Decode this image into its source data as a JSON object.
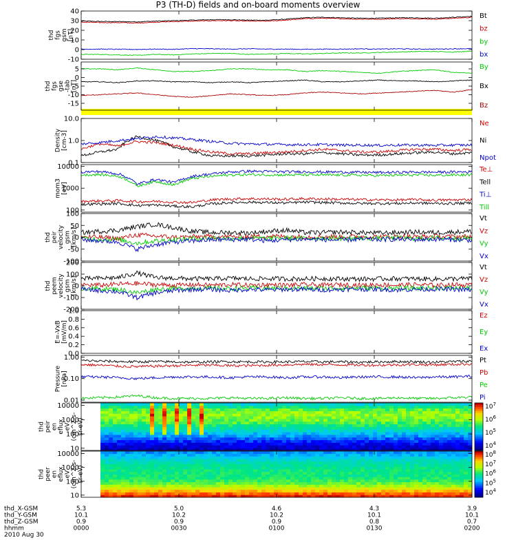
{
  "title": "P3 (TH-D) fields and on-board moments overview",
  "chart_data": [
    {
      "type": "line",
      "ylabel": [
        "thd",
        "fgs",
        "gsm",
        "[nT]"
      ],
      "ylim": [
        -10,
        40
      ],
      "yticks": [
        {
          "v": 40,
          "t": "40"
        },
        {
          "v": 30,
          "t": "30"
        },
        {
          "v": 20,
          "t": "20"
        },
        {
          "v": 10,
          "t": "10"
        },
        {
          "v": 0,
          "t": "0"
        },
        {
          "v": -10,
          "t": "-10"
        }
      ],
      "series": [
        {
          "name": "Bt",
          "color": "#000000",
          "values": [
            29.5,
            29.2,
            29.0,
            28.8,
            29.5,
            30.0,
            30.5,
            31.0,
            31.0,
            30.5,
            30.5,
            31.5,
            33.0,
            33.5,
            33.0,
            32.5,
            32.5,
            33.0,
            33.0,
            32.5,
            33.5,
            34.5
          ]
        },
        {
          "name": "bz",
          "color": "#cc0000",
          "values": [
            28.5,
            28.0,
            28.0,
            27.5,
            28.5,
            29.0,
            29.5,
            30.0,
            30.0,
            29.5,
            29.5,
            30.5,
            32.0,
            32.5,
            32.0,
            31.5,
            31.5,
            32.0,
            32.0,
            31.5,
            32.5,
            33.5
          ]
        },
        {
          "name": "by",
          "color": "#00cc00",
          "values": [
            -5.0,
            -5.0,
            -5.5,
            -6.0,
            -5.0,
            -5.5,
            -4.5,
            -4.0,
            -4.0,
            -5.0,
            -4.5,
            -4.0,
            -4.5,
            -4.0,
            -3.5,
            -3.5,
            -3.0,
            -2.5,
            -2.0,
            -2.0,
            -2.5,
            -1.5
          ]
        },
        {
          "name": "bx",
          "color": "#0000cc",
          "values": [
            0.5,
            0.5,
            0.3,
            0.2,
            0.5,
            0.3,
            1.0,
            0.8,
            0.5,
            0.8,
            0.5,
            0.5,
            0.3,
            0.5,
            0.5,
            0.8,
            0.5,
            0.8,
            0.5,
            0.5,
            0.8,
            1.0
          ]
        }
      ]
    },
    {
      "type": "line",
      "ylabel": [
        "thd",
        "fgs",
        "gse",
        "-tab",
        "[nT]"
      ],
      "ylim": [
        -19,
        9
      ],
      "yticks": [
        {
          "v": 5,
          "t": "5"
        },
        {
          "v": 0,
          "t": "0"
        },
        {
          "v": -5,
          "t": "-5"
        },
        {
          "v": -10,
          "t": "-10"
        },
        {
          "v": -15,
          "t": "-15"
        }
      ],
      "series": [
        {
          "name": "By",
          "color": "#00cc00",
          "values": [
            5.0,
            5.0,
            4.5,
            5.5,
            4.5,
            3.5,
            3.5,
            4.0,
            5.0,
            5.0,
            4.5,
            4.5,
            3.5,
            4.0,
            3.5,
            3.0,
            2.5,
            3.5,
            4.0,
            4.5,
            3.0,
            2.5
          ]
        },
        {
          "name": "Bx",
          "color": "#000000",
          "values": [
            -2.5,
            -2.5,
            -3.0,
            -2.0,
            -2.0,
            -2.5,
            -2.5,
            -3.0,
            -2.5,
            -3.0,
            -2.5,
            -2.0,
            -1.5,
            -2.5,
            -2.5,
            -2.0,
            -1.5,
            -2.0,
            -2.0,
            -2.5,
            -2.0,
            -1.5
          ]
        },
        {
          "name": "Bz",
          "color": "#aa0000",
          "values": [
            -10.5,
            -10.0,
            -9.5,
            -9.0,
            -10.0,
            -11.0,
            -11.5,
            -10.5,
            -9.5,
            -10.0,
            -10.5,
            -10.0,
            -9.0,
            -8.5,
            -9.0,
            -9.5,
            -9.0,
            -8.5,
            -8.0,
            -7.5,
            -8.5,
            -7.0
          ]
        }
      ]
    },
    {
      "type": "line",
      "ylabel": [
        "Density",
        "[cm-3]"
      ],
      "yscale": "log",
      "ylim": [
        0.1,
        10
      ],
      "yticks": [
        {
          "v": 10,
          "t": "10.0"
        },
        {
          "v": 1,
          "t": "1.0"
        },
        {
          "v": 0.1,
          "t": "0.1"
        }
      ],
      "series": [
        {
          "name": "Ne",
          "color": "#cc0000",
          "values": [
            0.4,
            0.7,
            0.55,
            0.9,
            0.8,
            0.6,
            0.4,
            0.3,
            0.25,
            0.25,
            0.28,
            0.3,
            0.35,
            0.4,
            0.35,
            0.3,
            0.3,
            0.35,
            0.4,
            0.4,
            0.35,
            0.4
          ]
        },
        {
          "name": "Ni",
          "color": "#000000",
          "values": [
            0.2,
            0.3,
            0.4,
            1.5,
            1.0,
            0.5,
            0.3,
            0.2,
            0.2,
            0.2,
            0.22,
            0.25,
            0.25,
            0.28,
            0.25,
            0.22,
            0.22,
            0.25,
            0.28,
            0.3,
            0.25,
            0.28
          ]
        },
        {
          "name": "Npot",
          "color": "#0000cc",
          "values": [
            0.7,
            0.8,
            1.0,
            1.2,
            1.5,
            1.3,
            1.1,
            0.9,
            0.75,
            0.7,
            0.68,
            0.65,
            0.65,
            0.65,
            0.62,
            0.62,
            0.6,
            0.62,
            0.62,
            0.6,
            0.62,
            0.62
          ]
        }
      ]
    },
    {
      "type": "line",
      "ylabel": [
        "mom3",
        "[eV]"
      ],
      "yscale": "log",
      "ylim": [
        80,
        12000
      ],
      "yticks": [
        {
          "v": 10000,
          "t": "10000"
        },
        {
          "v": 1000,
          "t": "1000"
        },
        {
          "v": 100,
          "t": "100"
        }
      ],
      "series": [
        {
          "name": "Te⊥",
          "color": "#cc0000",
          "values": [
            250,
            260,
            270,
            240,
            250,
            230,
            220,
            290,
            320,
            330,
            320,
            310,
            330,
            320,
            310,
            300,
            290,
            290,
            300,
            280,
            290,
            300
          ]
        },
        {
          "name": "Tell",
          "color": "#000000",
          "values": [
            180,
            190,
            200,
            160,
            170,
            150,
            140,
            190,
            220,
            230,
            220,
            210,
            230,
            220,
            210,
            200,
            200,
            200,
            210,
            200,
            200,
            210
          ]
        },
        {
          "name": "Ti⊥",
          "color": "#0000cc",
          "values": [
            5500,
            5800,
            4500,
            1500,
            2500,
            1800,
            3500,
            4500,
            5500,
            6000,
            5800,
            5600,
            5700,
            5500,
            5500,
            5300,
            5200,
            5300,
            5500,
            5400,
            5500,
            5600
          ]
        },
        {
          "name": "Till",
          "color": "#00cc00",
          "values": [
            4000,
            4200,
            3500,
            1200,
            2000,
            1400,
            2800,
            3500,
            4000,
            4200,
            4100,
            4000,
            4100,
            4000,
            4000,
            3900,
            3800,
            3900,
            4000,
            3900,
            4000,
            4100
          ]
        }
      ]
    },
    {
      "type": "line",
      "ylabel": [
        "thd",
        "peir",
        "velocity",
        "gsm",
        "[km/s]"
      ],
      "ylim": [
        -100,
        100
      ],
      "yticks": [
        {
          "v": 100,
          "t": "100"
        },
        {
          "v": 50,
          "t": "50"
        },
        {
          "v": 0,
          "t": "0"
        },
        {
          "v": -50,
          "t": "-50"
        },
        {
          "v": -100,
          "t": "-100"
        }
      ],
      "series": [
        {
          "name": "Vt",
          "color": "#000000",
          "values": [
            20,
            25,
            30,
            45,
            55,
            40,
            25,
            20,
            20,
            18,
            25,
            30,
            20,
            20,
            22,
            20,
            18,
            20,
            22,
            20,
            22,
            25
          ]
        },
        {
          "name": "Vz",
          "color": "#cc0000",
          "values": [
            2,
            0,
            -5,
            10,
            5,
            0,
            2,
            3,
            2,
            3,
            5,
            3,
            2,
            3,
            2,
            3,
            2,
            3,
            2,
            3,
            2,
            3
          ]
        },
        {
          "name": "Vy",
          "color": "#00cc00",
          "values": [
            -5,
            -8,
            -10,
            -25,
            -15,
            -10,
            -5,
            -3,
            -5,
            -3,
            -5,
            -3,
            -5,
            -3,
            -5,
            -3,
            -5,
            -3,
            -5,
            -3,
            -5,
            -3
          ]
        },
        {
          "name": "Vx",
          "color": "#0000cc",
          "values": [
            -10,
            -15,
            -20,
            -50,
            -30,
            -20,
            -15,
            -10,
            -10,
            -8,
            -15,
            -10,
            -8,
            -10,
            -12,
            -8,
            -10,
            -8,
            -10,
            -8,
            -10,
            -12
          ]
        }
      ]
    },
    {
      "type": "line",
      "ylabel": [
        "thd",
        "peem",
        "velocity",
        "gsm",
        "[km/s]"
      ],
      "ylim": [
        -200,
        200
      ],
      "yticks": [
        {
          "v": 200,
          "t": "200"
        },
        {
          "v": 100,
          "t": "100"
        },
        {
          "v": 0,
          "t": "0"
        },
        {
          "v": -100,
          "t": "-100"
        },
        {
          "v": -200,
          "t": "-200"
        }
      ],
      "series": [
        {
          "name": "Vt",
          "color": "#000000",
          "values": [
            60,
            65,
            70,
            110,
            70,
            65,
            60,
            60,
            65,
            60,
            62,
            60,
            60,
            62,
            60,
            58,
            60,
            62,
            60,
            58,
            60,
            62
          ]
        },
        {
          "name": "Vz",
          "color": "#cc0000",
          "values": [
            10,
            5,
            15,
            20,
            10,
            5,
            10,
            5,
            10,
            5,
            10,
            5,
            10,
            5,
            10,
            5,
            10,
            5,
            10,
            5,
            10,
            5
          ]
        },
        {
          "name": "Vy",
          "color": "#00cc00",
          "values": [
            -20,
            -25,
            -30,
            -60,
            -30,
            -25,
            -20,
            -20,
            -25,
            -20,
            -22,
            -20,
            -20,
            -22,
            -20,
            -18,
            -20,
            -22,
            -20,
            -18,
            -20,
            -22
          ]
        },
        {
          "name": "Vx",
          "color": "#0000cc",
          "values": [
            -30,
            -40,
            -50,
            -100,
            -60,
            -40,
            -30,
            -30,
            -40,
            -30,
            -35,
            -30,
            -30,
            -35,
            -30,
            -28,
            -30,
            -35,
            -30,
            -28,
            -30,
            -35
          ]
        }
      ]
    },
    {
      "type": "line",
      "ylabel": [
        "E=-VxB",
        "[mV/m]"
      ],
      "ylim": [
        0,
        1
      ],
      "yticks": [
        {
          "v": 1.0,
          "t": "1.0"
        },
        {
          "v": 0.8,
          "t": "0.8"
        },
        {
          "v": 0.6,
          "t": "0.6"
        },
        {
          "v": 0.4,
          "t": "0.4"
        },
        {
          "v": 0.2,
          "t": "0.2"
        },
        {
          "v": 0.0,
          "t": "0.0"
        }
      ],
      "series": [
        {
          "name": "Ez",
          "color": "#cc0000",
          "values": []
        },
        {
          "name": "Ey",
          "color": "#00cc00",
          "values": []
        },
        {
          "name": "Ex",
          "color": "#0000cc",
          "values": []
        }
      ]
    },
    {
      "type": "line",
      "ylabel": [
        "Pressure",
        "[nPa]"
      ],
      "yscale": "log",
      "ylim": [
        0.008,
        1.2
      ],
      "yticks": [
        {
          "v": 1.0,
          "t": "1.00"
        },
        {
          "v": 0.1,
          "t": "0.10"
        },
        {
          "v": 0.01,
          "t": "0.01"
        }
      ],
      "series": [
        {
          "name": "Pt",
          "color": "#000000",
          "values": [
            0.7,
            0.65,
            0.62,
            0.6,
            0.62,
            0.6,
            0.58,
            0.6,
            0.62,
            0.6,
            0.6,
            0.6,
            0.62,
            0.6,
            0.6,
            0.58,
            0.6,
            0.62,
            0.6,
            0.58,
            0.62,
            0.65
          ]
        },
        {
          "name": "Pb",
          "color": "#cc0000",
          "values": [
            0.45,
            0.42,
            0.38,
            0.36,
            0.38,
            0.4,
            0.42,
            0.42,
            0.4,
            0.4,
            0.42,
            0.44,
            0.46,
            0.45,
            0.44,
            0.43,
            0.42,
            0.44,
            0.45,
            0.44,
            0.46,
            0.48
          ]
        },
        {
          "name": "Pe",
          "color": "#00cc00",
          "values": [
            0.012,
            0.013,
            0.014,
            0.016,
            0.013,
            0.012,
            0.012,
            0.012,
            0.013,
            0.012,
            0.012,
            0.013,
            0.012,
            0.012,
            0.013,
            0.012,
            0.012,
            0.013,
            0.012,
            0.012,
            0.013,
            0.014
          ]
        },
        {
          "name": "Pi",
          "color": "#0000cc",
          "values": [
            0.12,
            0.12,
            0.11,
            0.1,
            0.11,
            0.12,
            0.12,
            0.12,
            0.11,
            0.12,
            0.12,
            0.11,
            0.12,
            0.12,
            0.11,
            0.12,
            0.12,
            0.12,
            0.11,
            0.12,
            0.12,
            0.13
          ]
        }
      ]
    },
    {
      "type": "heatmap",
      "ylabel": [
        "thd",
        "peir",
        "en",
        "eflux",
        "eV",
        "(cm^2-s-",
        "sr-eV)"
      ],
      "yscale": "log",
      "ylim": [
        7,
        15000
      ],
      "yticks": [
        {
          "v": 10000,
          "t": "10000"
        },
        {
          "v": 1000,
          "t": "1000"
        },
        {
          "v": 100,
          "t": "100"
        },
        {
          "v": 10,
          "t": "10"
        }
      ],
      "colorbar": {
        "labels": [
          "10^7",
          "10^6",
          "10^5",
          "10^4"
        ],
        "exps": [
          7,
          6,
          5,
          4
        ]
      },
      "profile": [
        4.2,
        4.4,
        4.7,
        5.0,
        5.3,
        5.6,
        5.8,
        5.9,
        5.7,
        5.2
      ],
      "cyan_band": [
        2.5,
        3.5
      ]
    },
    {
      "type": "heatmap",
      "ylabel": [
        "thd",
        "peer",
        "en",
        "eflux",
        "eV",
        "(cm^2-s-",
        "sr-eV)"
      ],
      "yscale": "log",
      "ylim": [
        7,
        15000
      ],
      "yticks": [
        {
          "v": 10000,
          "t": "10000"
        },
        {
          "v": 1000,
          "t": "1000"
        },
        {
          "v": 100,
          "t": "100"
        },
        {
          "v": 10,
          "t": "10"
        }
      ],
      "colorbar": {
        "labels": [
          "10^8",
          "10^7",
          "10^6",
          "10^5",
          "10^4"
        ],
        "exps": [
          8,
          7,
          6,
          5,
          4
        ]
      },
      "profile": [
        7.8,
        7.3,
        6.6,
        6.2,
        6.0,
        6.0,
        5.9,
        5.8,
        5.5,
        5.2
      ]
    }
  ],
  "footer": {
    "ticks": [
      "5.3",
      "5.0",
      "4.6",
      "4.3",
      "3.9"
    ],
    "rows": [
      {
        "label": "thd_X-GSM",
        "values": [
          "5.3",
          "5.0",
          "4.6",
          "4.3",
          "3.9"
        ]
      },
      {
        "label": "thd_Y-GSM",
        "values": [
          "10.1",
          "10.2",
          "10.2",
          "10.1",
          "10.1"
        ]
      },
      {
        "label": "thd_Z-GSM",
        "values": [
          "0.9",
          "0.9",
          "0.9",
          "0.8",
          "0.7"
        ]
      },
      {
        "label": "hhmm",
        "values": [
          "0000",
          "0030",
          "0100",
          "0130",
          "0200"
        ]
      }
    ],
    "date": "2010 Aug 30"
  }
}
